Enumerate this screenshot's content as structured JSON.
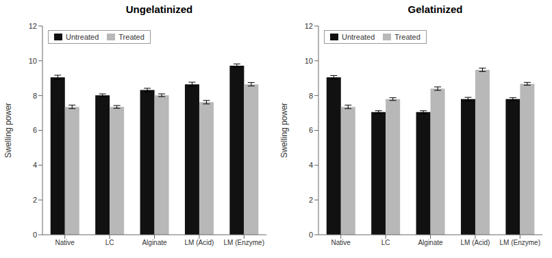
{
  "chart_data": [
    {
      "type": "bar",
      "title": "Ungelatinized",
      "ylabel": "Swelling power",
      "categories": [
        "Native",
        "LC",
        "Alginate",
        "LM (Acid)",
        "LM (Enzyme)"
      ],
      "series": [
        {
          "name": "Untreated",
          "color": "#111111",
          "values": [
            9.05,
            8.02,
            8.32,
            8.65,
            9.72
          ],
          "errors": [
            0.12,
            0.08,
            0.1,
            0.12,
            0.1
          ]
        },
        {
          "name": "Treated",
          "color": "#b8b8b8",
          "values": [
            7.35,
            7.35,
            8.02,
            7.62,
            8.65
          ],
          "errors": [
            0.1,
            0.08,
            0.08,
            0.1,
            0.1
          ]
        }
      ],
      "ylim": [
        0,
        12
      ],
      "yticks": [
        0,
        2,
        4,
        6,
        8,
        10,
        12
      ],
      "legend": "upper left",
      "grid": false
    },
    {
      "type": "bar",
      "title": "Gelatinized",
      "ylabel": "Swelling power",
      "categories": [
        "Native",
        "LC",
        "Alginate",
        "LM (Acid)",
        "LM (Enzyme)"
      ],
      "series": [
        {
          "name": "Untreated",
          "color": "#111111",
          "values": [
            9.05,
            7.05,
            7.05,
            7.8,
            7.8
          ],
          "errors": [
            0.1,
            0.08,
            0.08,
            0.1,
            0.08
          ]
        },
        {
          "name": "Treated",
          "color": "#b8b8b8",
          "values": [
            7.35,
            7.8,
            8.4,
            9.48,
            8.68
          ],
          "errors": [
            0.1,
            0.08,
            0.1,
            0.1,
            0.08
          ]
        }
      ],
      "ylim": [
        0,
        12
      ],
      "yticks": [
        0,
        2,
        4,
        6,
        8,
        10,
        12
      ],
      "legend": "upper left",
      "grid": false
    }
  ]
}
